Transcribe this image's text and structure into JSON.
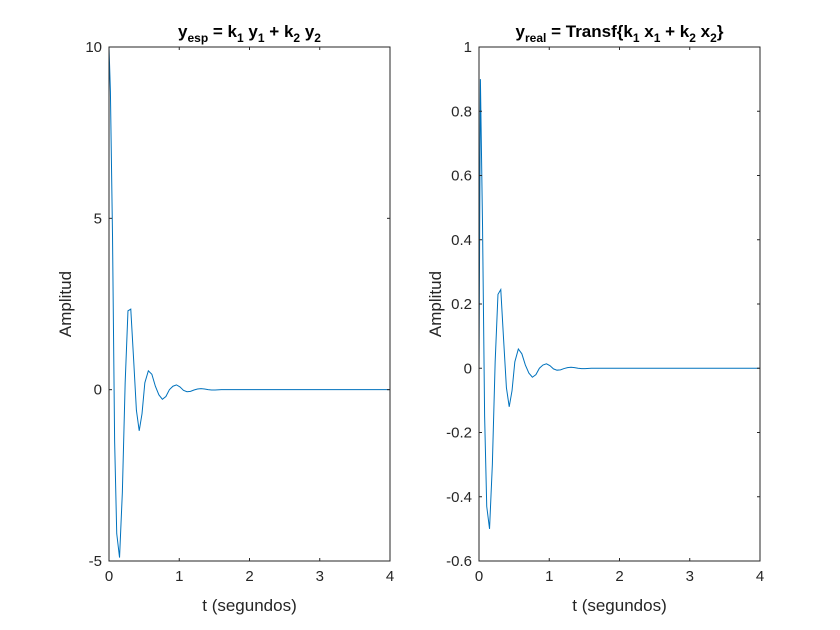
{
  "chart_data": [
    {
      "type": "line",
      "title": {
        "main": "y",
        "main_sub": "esp",
        "rest": [
          {
            "t": " = k"
          },
          {
            "s": "1"
          },
          {
            "t": " y"
          },
          {
            "s": "1"
          },
          {
            "t": " + k"
          },
          {
            "s": "2"
          },
          {
            "t": " y"
          },
          {
            "s": "2"
          }
        ]
      },
      "xlabel": "t (segundos)",
      "ylabel": "Amplitud",
      "xlim": [
        0,
        4
      ],
      "ylim": [
        -5,
        10
      ],
      "xticks": [
        0,
        1,
        2,
        3,
        4
      ],
      "xtick_labels": [
        "0",
        "1",
        "2",
        "3",
        "4"
      ],
      "yticks": [
        -5,
        0,
        5,
        10
      ],
      "ytick_labels": [
        "-5",
        "0",
        "5",
        "10"
      ],
      "grid": false,
      "color": "#0072bd",
      "series": [
        {
          "x": [
            0.0,
            0.02,
            0.05,
            0.08,
            0.11,
            0.15,
            0.19,
            0.23,
            0.27,
            0.31,
            0.35,
            0.39,
            0.43,
            0.47,
            0.51,
            0.56,
            0.61,
            0.66,
            0.71,
            0.76,
            0.81,
            0.86,
            0.91,
            0.96,
            1.01,
            1.06,
            1.11,
            1.16,
            1.21,
            1.26,
            1.31,
            1.36,
            1.41,
            1.46,
            1.51,
            1.6,
            1.8,
            2.0,
            2.5,
            3.0,
            3.5,
            4.0
          ],
          "y": [
            10.0,
            8.7,
            4.5,
            -1.5,
            -4.2,
            -4.9,
            -3.0,
            0.2,
            2.3,
            2.35,
            0.9,
            -0.6,
            -1.2,
            -0.7,
            0.2,
            0.55,
            0.45,
            0.1,
            -0.15,
            -0.28,
            -0.2,
            0.0,
            0.1,
            0.14,
            0.08,
            -0.02,
            -0.06,
            -0.05,
            -0.01,
            0.02,
            0.03,
            0.02,
            0.0,
            -0.01,
            -0.01,
            0.0,
            0.0,
            0.0,
            0.0,
            0.0,
            0.0,
            0.0
          ]
        }
      ]
    },
    {
      "type": "line",
      "title": {
        "main": "y",
        "main_sub": "real",
        "rest": [
          {
            "t": " = Transf{k"
          },
          {
            "s": "1"
          },
          {
            "t": " x"
          },
          {
            "s": "1"
          },
          {
            "t": " + k"
          },
          {
            "s": "2"
          },
          {
            "t": " x"
          },
          {
            "s": "2"
          },
          {
            "t": "}"
          }
        ]
      },
      "xlabel": "t (segundos)",
      "ylabel": "Amplitud",
      "xlim": [
        0,
        4
      ],
      "ylim": [
        -0.6,
        1
      ],
      "xticks": [
        0,
        1,
        2,
        3,
        4
      ],
      "xtick_labels": [
        "0",
        "1",
        "2",
        "3",
        "4"
      ],
      "yticks": [
        -0.6,
        -0.4,
        -0.2,
        0,
        0.2,
        0.4,
        0.6,
        0.8,
        1
      ],
      "ytick_labels": [
        "-0.6",
        "-0.4",
        "-0.2",
        "0",
        "0.2",
        "0.4",
        "0.6",
        "0.8",
        "1"
      ],
      "grid": false,
      "color": "#0072bd",
      "series": [
        {
          "x": [
            0.0,
            0.02,
            0.05,
            0.08,
            0.11,
            0.15,
            0.19,
            0.23,
            0.27,
            0.31,
            0.35,
            0.39,
            0.43,
            0.47,
            0.51,
            0.56,
            0.61,
            0.66,
            0.71,
            0.76,
            0.81,
            0.86,
            0.91,
            0.96,
            1.01,
            1.06,
            1.11,
            1.16,
            1.21,
            1.26,
            1.31,
            1.36,
            1.41,
            1.46,
            1.51,
            1.6,
            1.8,
            2.0,
            2.5,
            3.0,
            3.5,
            4.0
          ],
          "y": [
            0.0,
            0.9,
            0.45,
            -0.15,
            -0.43,
            -0.5,
            -0.3,
            0.02,
            0.23,
            0.245,
            0.09,
            -0.06,
            -0.12,
            -0.07,
            0.02,
            0.06,
            0.045,
            0.01,
            -0.015,
            -0.028,
            -0.02,
            0.0,
            0.01,
            0.014,
            0.008,
            -0.002,
            -0.006,
            -0.005,
            -0.001,
            0.002,
            0.003,
            0.002,
            0.0,
            -0.001,
            -0.001,
            0.0,
            0.0,
            0.0,
            0.0,
            0.0,
            0.0,
            0.0
          ]
        }
      ]
    }
  ]
}
